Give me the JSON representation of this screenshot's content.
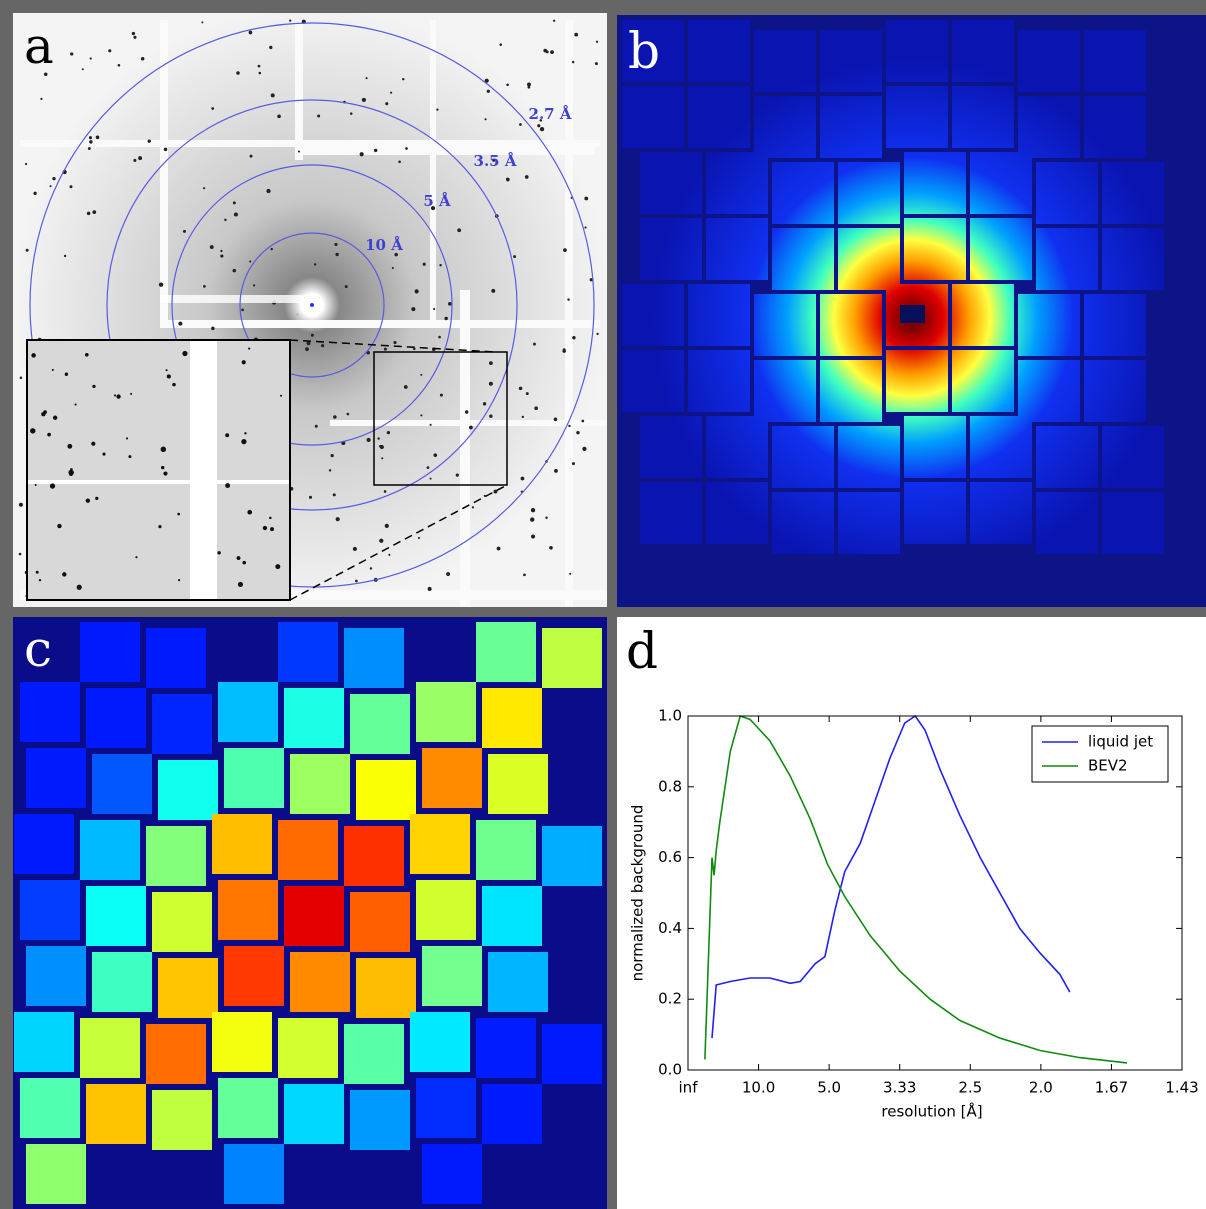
{
  "panels": {
    "a": {
      "label": "a",
      "rings": [
        "2.7 Å",
        "3.5 Å",
        "5 Å",
        "10 Å"
      ]
    },
    "b": {
      "label": "b"
    },
    "c": {
      "label": "c"
    },
    "d": {
      "label": "d"
    }
  },
  "chart_data": {
    "type": "line",
    "xlabel": "resolution [Å]",
    "ylabel": "normalized background",
    "xlim": [
      0,
      0.7
    ],
    "xticks": [
      {
        "value": 0,
        "label": "inf"
      },
      {
        "value": 0.1,
        "label": "10.0"
      },
      {
        "value": 0.2,
        "label": "5.0"
      },
      {
        "value": 0.3,
        "label": "3.33"
      },
      {
        "value": 0.4,
        "label": "2.5"
      },
      {
        "value": 0.5,
        "label": "2.0"
      },
      {
        "value": 0.6,
        "label": "1.67"
      },
      {
        "value": 0.7,
        "label": "1.43"
      }
    ],
    "ylim": [
      0,
      1
    ],
    "yticks": [
      {
        "value": 0,
        "label": "0.0"
      },
      0.2,
      0.4,
      0.6,
      0.8,
      {
        "value": 1,
        "label": "1.0"
      }
    ],
    "legend": "upper right",
    "series": [
      {
        "name": "liquid jet",
        "color": "#2020f0",
        "x": [
          0.034,
          0.04,
          0.06,
          0.088,
          0.116,
          0.145,
          0.159,
          0.18,
          0.194,
          0.208,
          0.222,
          0.244,
          0.265,
          0.286,
          0.307,
          0.322,
          0.336,
          0.357,
          0.385,
          0.414,
          0.442,
          0.47,
          0.499,
          0.527,
          0.541
        ],
        "values": [
          0.09,
          0.24,
          0.25,
          0.26,
          0.26,
          0.245,
          0.25,
          0.3,
          0.32,
          0.45,
          0.56,
          0.64,
          0.76,
          0.88,
          0.98,
          1.0,
          0.96,
          0.85,
          0.72,
          0.6,
          0.5,
          0.4,
          0.33,
          0.27,
          0.22
        ]
      },
      {
        "name": "BEV2",
        "color": "#118a11",
        "x": [
          0.024,
          0.034,
          0.037,
          0.04,
          0.045,
          0.06,
          0.074,
          0.088,
          0.116,
          0.145,
          0.173,
          0.198,
          0.222,
          0.258,
          0.3,
          0.343,
          0.385,
          0.442,
          0.499,
          0.555,
          0.622
        ],
        "values": [
          0.03,
          0.6,
          0.55,
          0.62,
          0.7,
          0.9,
          1.0,
          0.99,
          0.93,
          0.83,
          0.71,
          0.58,
          0.49,
          0.38,
          0.28,
          0.2,
          0.14,
          0.09,
          0.055,
          0.035,
          0.02
        ]
      }
    ]
  }
}
